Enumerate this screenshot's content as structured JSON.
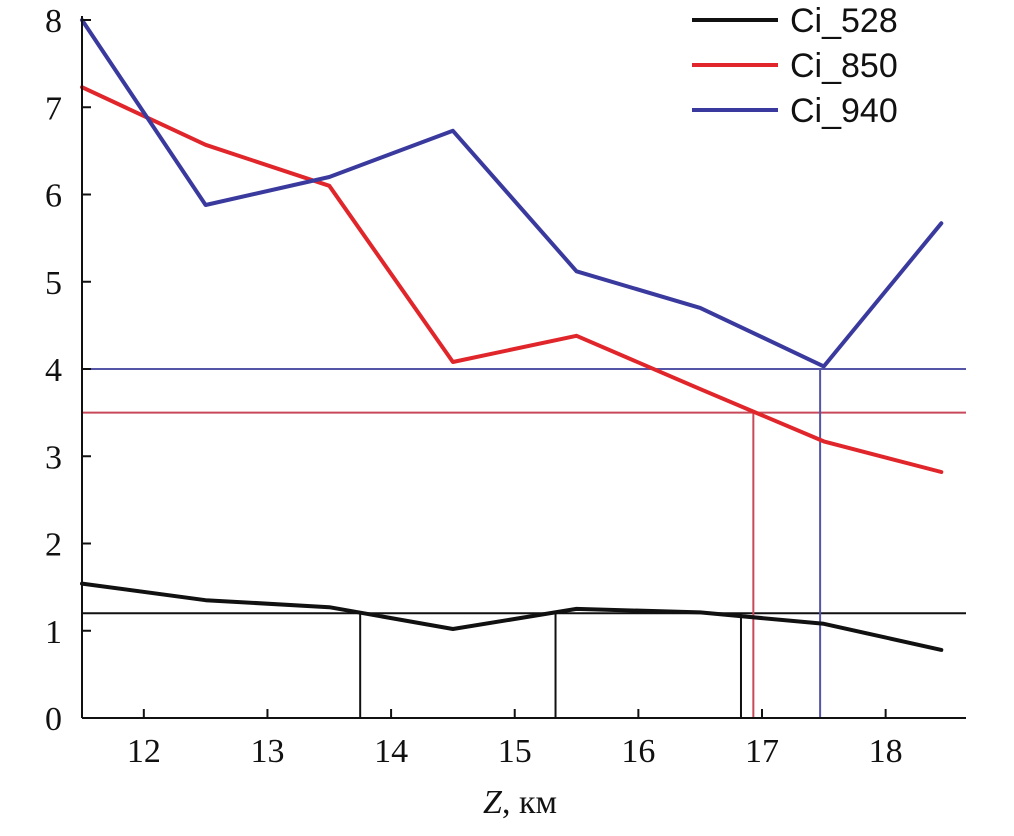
{
  "chart_data": {
    "type": "line",
    "xlabel_var": "Z",
    "xlabel_unit": ", км",
    "xlim": [
      11.5,
      18.65
    ],
    "ylim": [
      0,
      8
    ],
    "xticks": [
      12,
      13,
      14,
      15,
      16,
      17,
      18
    ],
    "yticks": [
      0,
      1,
      2,
      3,
      4,
      5,
      6,
      7,
      8
    ],
    "grid": false,
    "legend_position": "top-right",
    "series": [
      {
        "name": "Ci_528",
        "color": "#111111",
        "x": [
          11.5,
          12.5,
          13.5,
          14.5,
          15.5,
          16.5,
          17.5,
          18.45
        ],
        "y": [
          1.54,
          1.35,
          1.27,
          1.02,
          1.25,
          1.21,
          1.08,
          0.78
        ]
      },
      {
        "name": "Ci_850",
        "color": "#e0262b",
        "x": [
          11.5,
          12.5,
          13.5,
          14.5,
          15.5,
          16.5,
          17.5,
          18.45
        ],
        "y": [
          7.23,
          6.57,
          6.1,
          4.08,
          4.38,
          3.77,
          3.17,
          2.82
        ]
      },
      {
        "name": "Ci_940",
        "color": "#3a3a9e",
        "x": [
          11.5,
          12.5,
          13.5,
          14.5,
          15.5,
          16.5,
          17.5,
          18.45
        ],
        "y": [
          8.0,
          5.88,
          6.2,
          6.73,
          5.12,
          4.7,
          4.03,
          5.67
        ]
      }
    ],
    "threshold_lines": [
      {
        "y": 1.2,
        "color": "#111111"
      },
      {
        "y": 3.5,
        "color": "#c84a5a"
      },
      {
        "y": 4.0,
        "color": "#5555a8"
      }
    ],
    "drop_lines": [
      {
        "x": 13.75,
        "y": 1.2,
        "color": "#111111"
      },
      {
        "x": 15.33,
        "y": 1.2,
        "color": "#111111"
      },
      {
        "x": 16.83,
        "y": 1.2,
        "color": "#111111"
      },
      {
        "x": 16.93,
        "y": 3.5,
        "color": "#c84a5a"
      },
      {
        "x": 17.47,
        "y": 4.0,
        "color": "#5555a8"
      }
    ]
  }
}
